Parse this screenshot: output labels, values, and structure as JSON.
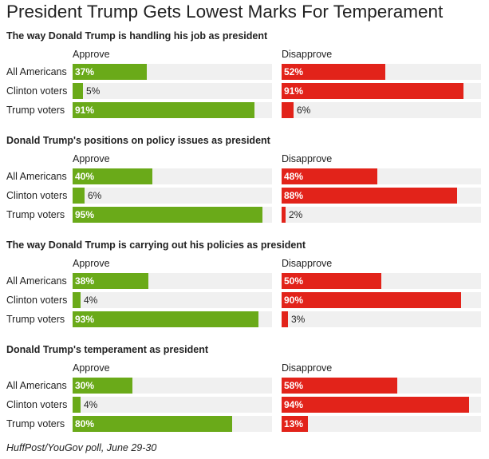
{
  "chart_data": {
    "type": "bar",
    "title": "President Trump Gets Lowest Marks For Temperament",
    "source": "HuffPost/YouGov poll, June 29-30",
    "columns": [
      "Approve",
      "Disapprove"
    ],
    "colors": {
      "approve": "#6aaa19",
      "disapprove": "#e2231a",
      "track": "#f0f0f0"
    },
    "xlim": [
      0,
      100
    ],
    "sections": [
      {
        "title": "The way Donald Trump is handling his job as president",
        "rows": [
          {
            "label": "All Americans",
            "approve": 37,
            "disapprove": 52
          },
          {
            "label": "Clinton voters",
            "approve": 5,
            "disapprove": 91
          },
          {
            "label": "Trump voters",
            "approve": 91,
            "disapprove": 6
          }
        ]
      },
      {
        "title": "Donald Trump's positions on policy issues as president",
        "rows": [
          {
            "label": "All Americans",
            "approve": 40,
            "disapprove": 48
          },
          {
            "label": "Clinton voters",
            "approve": 6,
            "disapprove": 88
          },
          {
            "label": "Trump voters",
            "approve": 95,
            "disapprove": 2
          }
        ]
      },
      {
        "title": "The way Donald Trump is carrying out his policies as president",
        "rows": [
          {
            "label": "All Americans",
            "approve": 38,
            "disapprove": 50
          },
          {
            "label": "Clinton voters",
            "approve": 4,
            "disapprove": 90
          },
          {
            "label": "Trump voters",
            "approve": 93,
            "disapprove": 3
          }
        ]
      },
      {
        "title": "Donald Trump's temperament as president",
        "rows": [
          {
            "label": "All Americans",
            "approve": 30,
            "disapprove": 58
          },
          {
            "label": "Clinton voters",
            "approve": 4,
            "disapprove": 94
          },
          {
            "label": "Trump voters",
            "approve": 80,
            "disapprove": 13
          }
        ]
      }
    ]
  }
}
